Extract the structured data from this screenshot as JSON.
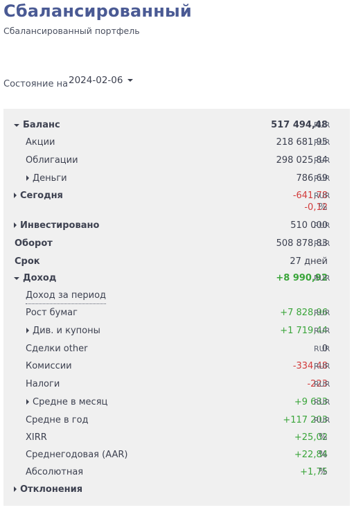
{
  "header": {
    "title": "Сбалансированный",
    "subtitle": "Сбалансированный портфель"
  },
  "state": {
    "label": "Состояние на",
    "date": "2024-02-06"
  },
  "rows": {
    "balance": {
      "label": "Баланс",
      "value": "517 494,48",
      "unit": "RUR"
    },
    "stocks": {
      "label": "Акции",
      "value": "218 681,95",
      "unit": "RUR"
    },
    "bonds": {
      "label": "Облигации",
      "value": "298 025,84",
      "unit": "RUR"
    },
    "money": {
      "label": "Деньги",
      "value": "786,69",
      "unit": "RUR"
    },
    "today": {
      "label": "Сегодня",
      "value": "-641,78",
      "unit": "RUR",
      "value2": "-0,12",
      "unit2": "%"
    },
    "invested": {
      "label": "Инвестировано",
      "value": "510 000",
      "unit": "RUR"
    },
    "turnover": {
      "label": "Оборот",
      "value": "508 878,83",
      "unit": "RUR"
    },
    "term": {
      "label": "Срок",
      "value": "27 дней"
    },
    "income": {
      "label": "Доход",
      "value": "+8 990,92",
      "unit": "RUR"
    },
    "period_income": {
      "label": "Доход за период"
    },
    "growth": {
      "label": "Рост бумаг",
      "value": "+7 828,96",
      "unit": "RUR"
    },
    "dividends": {
      "label": "Див. и купоны",
      "value": "+1 719,44",
      "unit": "RUR"
    },
    "other": {
      "label": "Сделки other",
      "value": "0",
      "unit": "RUR"
    },
    "commissions": {
      "label": "Комиссии",
      "value": "-334,48",
      "unit": "RUR"
    },
    "taxes": {
      "label": "Налоги",
      "value": "-223",
      "unit": "RUR"
    },
    "avg_month": {
      "label": "Средне в месяц",
      "value": "+9 633",
      "unit": "RUR"
    },
    "avg_year": {
      "label": "Средне в год",
      "value": "+117 203",
      "unit": "RUR"
    },
    "xirr": {
      "label": "XIRR",
      "value": "+25,02",
      "unit": "%"
    },
    "aar": {
      "label": "Среднегодовая (AAR)",
      "value": "+22,84",
      "unit": "%"
    },
    "absolute": {
      "label": "Абсолютная",
      "value": "+1,75",
      "unit": "%"
    },
    "deviations": {
      "label": "Отклонения"
    }
  },
  "colors": {
    "title": "#4a5a94",
    "positive": "#3aa53a",
    "negative": "#d23b3b",
    "panel": "#f0f0f0"
  }
}
